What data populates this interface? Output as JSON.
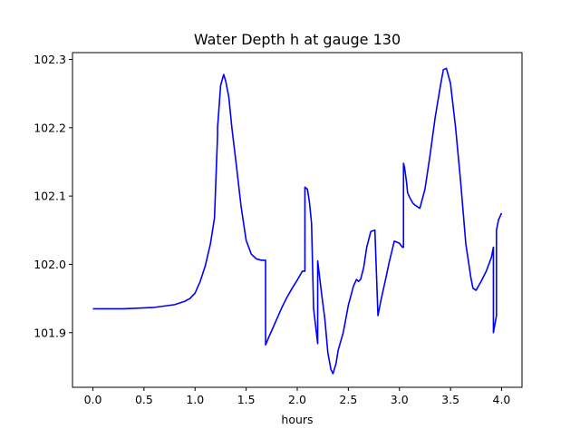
{
  "chart_data": {
    "type": "line",
    "title": "Water Depth h at gauge 130",
    "xlabel": "hours",
    "ylabel": "",
    "xlim": [
      -0.2,
      4.2
    ],
    "ylim": [
      101.82,
      102.31
    ],
    "xticks": [
      0.0,
      0.5,
      1.0,
      1.5,
      2.0,
      2.5,
      3.0,
      3.5,
      4.0
    ],
    "xtick_labels": [
      "0.0",
      "0.5",
      "1.0",
      "1.5",
      "2.0",
      "2.5",
      "3.0",
      "3.5",
      "4.0"
    ],
    "yticks": [
      101.9,
      102.0,
      102.1,
      102.2,
      102.3
    ],
    "ytick_labels": [
      "101.9",
      "102.0",
      "102.1",
      "102.2",
      "102.3"
    ],
    "grid": false,
    "series": [
      {
        "color": "#0000ff",
        "x": [
          0.0,
          0.3,
          0.6,
          0.8,
          0.9,
          0.95,
          1.0,
          1.05,
          1.1,
          1.15,
          1.19,
          1.22,
          1.22,
          1.25,
          1.28,
          1.3,
          1.33,
          1.36,
          1.4,
          1.45,
          1.5,
          1.55,
          1.6,
          1.65,
          1.69,
          1.69,
          1.72,
          1.75,
          1.8,
          1.85,
          1.9,
          1.95,
          2.0,
          2.05,
          2.075,
          2.075,
          2.1,
          2.12,
          2.14,
          2.16,
          2.16,
          2.2,
          2.2,
          2.24,
          2.27,
          2.3,
          2.33,
          2.35,
          2.38,
          2.4,
          2.45,
          2.5,
          2.55,
          2.58,
          2.6,
          2.62,
          2.65,
          2.68,
          2.72,
          2.76,
          2.79,
          2.79,
          2.82,
          2.86,
          2.9,
          2.95,
          3.0,
          3.03,
          3.04,
          3.04,
          3.05,
          3.07,
          3.08,
          3.1,
          3.13,
          3.15,
          3.2,
          3.25,
          3.3,
          3.35,
          3.4,
          3.43,
          3.46,
          3.5,
          3.55,
          3.6,
          3.65,
          3.7,
          3.72,
          3.75,
          3.8,
          3.85,
          3.9,
          3.92,
          3.92,
          3.95,
          3.95,
          3.97,
          4.0
        ],
        "y": [
          101.935,
          101.935,
          101.937,
          101.941,
          101.946,
          101.95,
          101.958,
          101.975,
          101.998,
          102.03,
          102.068,
          102.19,
          102.2,
          102.262,
          102.278,
          102.268,
          102.245,
          102.2,
          102.15,
          102.085,
          102.035,
          102.015,
          102.008,
          102.006,
          102.006,
          101.882,
          101.893,
          101.903,
          101.92,
          101.937,
          101.952,
          101.965,
          101.977,
          101.99,
          101.99,
          102.113,
          102.11,
          102.09,
          102.06,
          101.935,
          101.935,
          101.884,
          102.005,
          101.955,
          101.92,
          101.87,
          101.846,
          101.84,
          101.855,
          101.874,
          101.9,
          101.94,
          101.968,
          101.978,
          101.975,
          101.978,
          101.995,
          102.025,
          102.048,
          102.05,
          101.925,
          101.925,
          101.948,
          101.975,
          102.003,
          102.034,
          102.031,
          102.025,
          102.025,
          102.148,
          102.142,
          102.12,
          102.105,
          102.098,
          102.09,
          102.087,
          102.082,
          102.11,
          102.16,
          102.215,
          102.26,
          102.285,
          102.287,
          102.265,
          102.2,
          102.12,
          102.03,
          101.98,
          101.965,
          101.962,
          101.975,
          101.99,
          102.01,
          102.025,
          101.9,
          101.925,
          102.05,
          102.065,
          102.075
        ]
      }
    ]
  }
}
